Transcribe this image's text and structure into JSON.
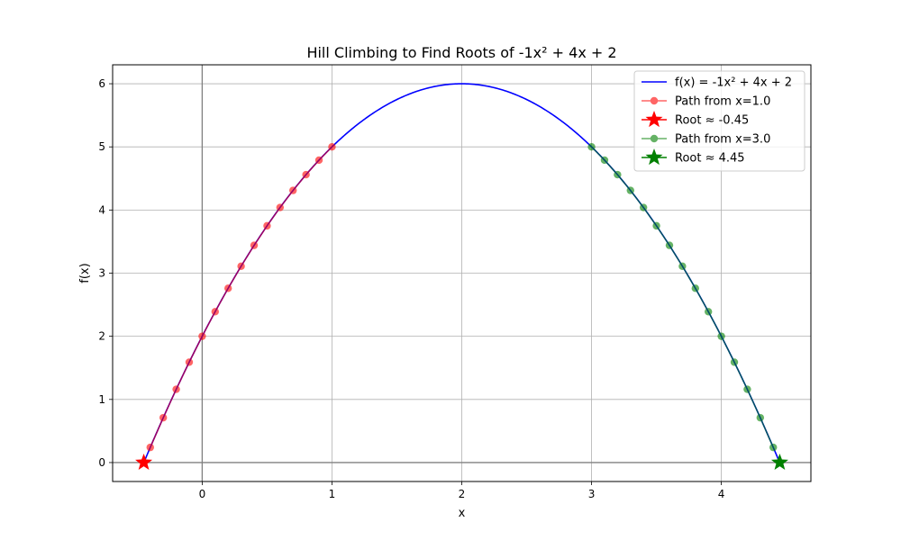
{
  "chart_data": {
    "type": "line",
    "title": "Hill Climbing to Find Roots of -1x² + 4x + 2",
    "xlabel": "x",
    "ylabel": "f(x)",
    "xlim": [
      -0.69,
      4.69
    ],
    "ylim": [
      -0.3,
      6.3
    ],
    "xticks": [
      0,
      1,
      2,
      3,
      4
    ],
    "yticks": [
      0,
      1,
      2,
      3,
      4,
      5,
      6
    ],
    "grid": true,
    "legend_position": "top-right",
    "function": {
      "a": -1,
      "b": 4,
      "c": 2,
      "x_range": [
        -0.45,
        4.45
      ]
    },
    "series": [
      {
        "name": "f(x) = -1x² + 4x + 2",
        "kind": "curve",
        "color": "#0000ff"
      },
      {
        "name": "Path from x=1.0",
        "kind": "path",
        "color": "#ff0000",
        "x": [
          1.0,
          0.9,
          0.8,
          0.7,
          0.6,
          0.5,
          0.4,
          0.3,
          0.2,
          0.1,
          0.0,
          -0.1,
          -0.2,
          -0.3,
          -0.4
        ],
        "y": [
          5.0,
          4.79,
          4.56,
          4.31,
          4.04,
          3.75,
          3.44,
          3.11,
          2.76,
          2.39,
          2.0,
          1.59,
          1.16,
          0.71,
          0.24
        ]
      },
      {
        "name": "Root ≈ -0.45",
        "kind": "root",
        "color": "#ff0000",
        "x": [
          -0.45
        ],
        "y": [
          0
        ]
      },
      {
        "name": "Path from x=3.0",
        "kind": "path",
        "color": "#008000",
        "x": [
          3.0,
          3.1,
          3.2,
          3.3,
          3.4,
          3.5,
          3.6,
          3.7,
          3.8,
          3.9,
          4.0,
          4.1,
          4.2,
          4.3,
          4.4
        ],
        "y": [
          5.0,
          4.79,
          4.56,
          4.31,
          4.04,
          3.75,
          3.44,
          3.11,
          2.76,
          2.39,
          2.0,
          1.59,
          1.16,
          0.71,
          0.24
        ]
      },
      {
        "name": "Root ≈ 4.45",
        "kind": "root",
        "color": "#008000",
        "x": [
          4.45
        ],
        "y": [
          0
        ]
      }
    ],
    "reference_lines": {
      "x": 0,
      "y": 0,
      "color": "#808080"
    }
  }
}
